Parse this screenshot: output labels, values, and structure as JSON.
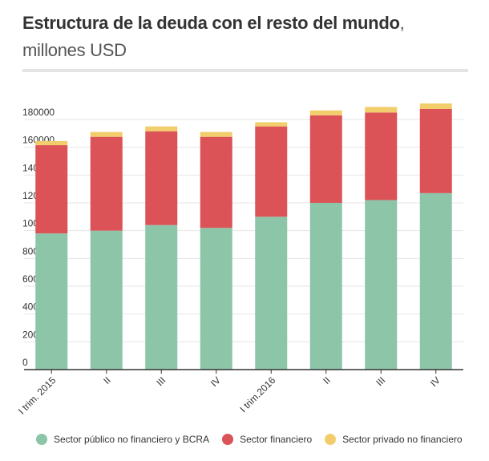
{
  "header": {
    "title_bold": "Estructura de la deuda con el resto del mundo",
    "title_rest": ", millones USD"
  },
  "colors": {
    "publico": "#8cc5a8",
    "financiero": "#db5257",
    "privado": "#f2cd6b",
    "grid": "#e6e6e6",
    "axis": "#333333"
  },
  "chart_data": {
    "type": "bar",
    "stacked": true,
    "categories": [
      "I trim. 2015",
      "II",
      "III",
      "IV",
      "I trim.2016",
      "II",
      "III",
      "IV"
    ],
    "series": [
      {
        "name": "Sector público no financiero y BCRA",
        "values": [
          98000,
          100000,
          104000,
          102000,
          110000,
          120000,
          122000,
          127000
        ]
      },
      {
        "name": "Sector financiero",
        "values": [
          63500,
          67500,
          67500,
          65500,
          65000,
          63000,
          63000,
          60500
        ]
      },
      {
        "name": "Sector privado no financiero",
        "values": [
          3000,
          3500,
          3500,
          3500,
          3000,
          3500,
          4000,
          4000
        ]
      }
    ],
    "y_ticks": [
      0,
      20000,
      40000,
      60000,
      80000,
      100000,
      120000,
      140000,
      160000,
      180000
    ],
    "ylim": [
      0,
      195000
    ],
    "grid": true,
    "legend_position": "bottom",
    "xlabel": "",
    "ylabel": ""
  }
}
